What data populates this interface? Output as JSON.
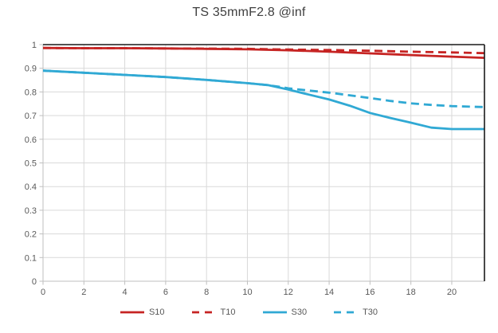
{
  "chart_data": {
    "type": "line",
    "title": "TS 35mmF2.8 @inf",
    "xlabel": "",
    "ylabel": "",
    "xlim": [
      0,
      21.6
    ],
    "ylim": [
      0,
      1
    ],
    "xticks": [
      0,
      2,
      4,
      6,
      8,
      10,
      12,
      14,
      16,
      18,
      20
    ],
    "yticks": [
      0,
      0.1,
      0.2,
      0.3,
      0.4,
      0.5,
      0.6,
      0.7,
      0.8,
      0.9,
      1
    ],
    "ytick_labels": [
      "0",
      "0.1",
      "0.2",
      "0.3",
      "0.4",
      "0.5",
      "0.6",
      "0.7",
      "0.8",
      "0.9",
      "1"
    ],
    "grid": true,
    "legend_position": "bottom",
    "colors": {
      "grid": "#d9d9d9",
      "axis": "#bfbfbf",
      "border": "#1a1a1a",
      "tick_label": "#595959",
      "title": "#3f3f3f",
      "legend_text": "#595959"
    },
    "series": [
      {
        "name": "S10",
        "color": "#c62423",
        "style": "solid",
        "x": [
          0,
          2,
          4,
          6,
          8,
          10,
          12,
          14,
          16,
          18,
          20,
          21.6
        ],
        "y": [
          0.986,
          0.985,
          0.985,
          0.984,
          0.982,
          0.98,
          0.976,
          0.97,
          0.963,
          0.956,
          0.949,
          0.944
        ]
      },
      {
        "name": "T10",
        "color": "#c62423",
        "style": "dashed",
        "x": [
          0,
          2,
          4,
          6,
          8,
          10,
          12,
          14,
          16,
          18,
          20,
          21.6
        ],
        "y": [
          0.986,
          0.985,
          0.985,
          0.984,
          0.983,
          0.982,
          0.979,
          0.977,
          0.974,
          0.97,
          0.967,
          0.964
        ]
      },
      {
        "name": "S30",
        "color": "#30a9d4",
        "style": "solid",
        "x": [
          0,
          2,
          4,
          6,
          8,
          10,
          11,
          12,
          13,
          14,
          15,
          16,
          17,
          18,
          19,
          20,
          21.6
        ],
        "y": [
          0.89,
          0.881,
          0.872,
          0.863,
          0.851,
          0.837,
          0.829,
          0.81,
          0.789,
          0.768,
          0.742,
          0.711,
          0.69,
          0.67,
          0.649,
          0.643,
          0.643
        ]
      },
      {
        "name": "T30",
        "color": "#30a9d4",
        "style": "dashed",
        "x": [
          0,
          2,
          4,
          6,
          8,
          10,
          11,
          11.7,
          12,
          13,
          14,
          15,
          16,
          17,
          18,
          19,
          20,
          21.6
        ],
        "y": [
          0.89,
          0.881,
          0.872,
          0.863,
          0.851,
          0.837,
          0.829,
          0.82,
          0.815,
          0.806,
          0.797,
          0.786,
          0.774,
          0.762,
          0.752,
          0.745,
          0.74,
          0.736
        ]
      }
    ]
  }
}
